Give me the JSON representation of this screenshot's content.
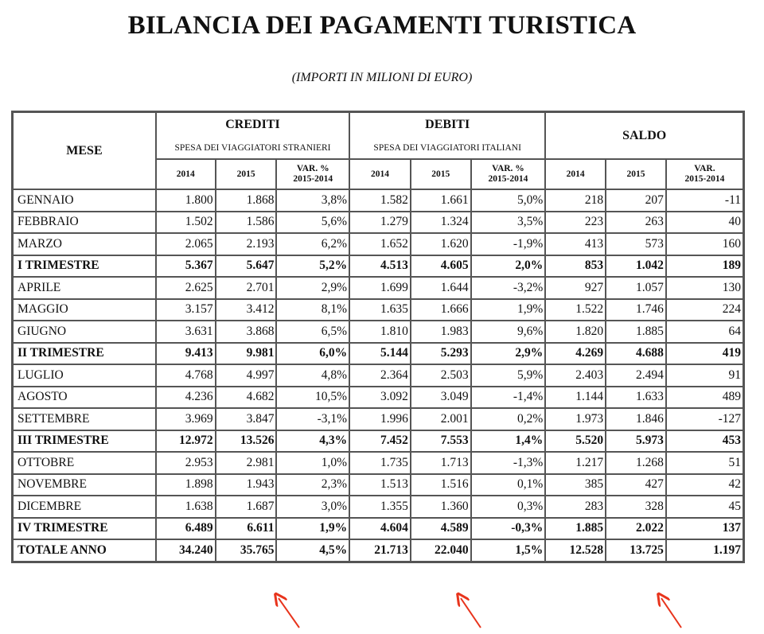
{
  "title": "BILANCIA DEI PAGAMENTI TURISTICA",
  "subtitle": "(IMPORTI IN MILIONI DI EURO)",
  "table": {
    "mese_header": "MESE",
    "groups": [
      {
        "name": "CREDITI",
        "sub": "SPESA DEI VIAGGIATORI STRANIERI"
      },
      {
        "name": "DEBITI",
        "sub": "SPESA DEI VIAGGIATORI ITALIANI"
      },
      {
        "name": "SALDO",
        "sub": ""
      }
    ],
    "subheaders": [
      [
        "2014",
        "2015",
        "VAR. %\n2015-2014"
      ],
      [
        "2014",
        "2015",
        "VAR. %\n2015-2014"
      ],
      [
        "2014",
        "2015",
        "VAR.\n2015-2014"
      ]
    ],
    "rows": [
      {
        "label": "GENNAIO",
        "bold": false,
        "values": [
          "1.800",
          "1.868",
          "3,8%",
          "1.582",
          "1.661",
          "5,0%",
          "218",
          "207",
          "-11"
        ]
      },
      {
        "label": "FEBBRAIO",
        "bold": false,
        "values": [
          "1.502",
          "1.586",
          "5,6%",
          "1.279",
          "1.324",
          "3,5%",
          "223",
          "263",
          "40"
        ]
      },
      {
        "label": "MARZO",
        "bold": false,
        "values": [
          "2.065",
          "2.193",
          "6,2%",
          "1.652",
          "1.620",
          "-1,9%",
          "413",
          "573",
          "160"
        ]
      },
      {
        "label": "I TRIMESTRE",
        "bold": true,
        "values": [
          "5.367",
          "5.647",
          "5,2%",
          "4.513",
          "4.605",
          "2,0%",
          "853",
          "1.042",
          "189"
        ]
      },
      {
        "label": "APRILE",
        "bold": false,
        "values": [
          "2.625",
          "2.701",
          "2,9%",
          "1.699",
          "1.644",
          "-3,2%",
          "927",
          "1.057",
          "130"
        ]
      },
      {
        "label": "MAGGIO",
        "bold": false,
        "values": [
          "3.157",
          "3.412",
          "8,1%",
          "1.635",
          "1.666",
          "1,9%",
          "1.522",
          "1.746",
          "224"
        ]
      },
      {
        "label": "GIUGNO",
        "bold": false,
        "values": [
          "3.631",
          "3.868",
          "6,5%",
          "1.810",
          "1.983",
          "9,6%",
          "1.820",
          "1.885",
          "64"
        ]
      },
      {
        "label": "II TRIMESTRE",
        "bold": true,
        "values": [
          "9.413",
          "9.981",
          "6,0%",
          "5.144",
          "5.293",
          "2,9%",
          "4.269",
          "4.688",
          "419"
        ]
      },
      {
        "label": "LUGLIO",
        "bold": false,
        "values": [
          "4.768",
          "4.997",
          "4,8%",
          "2.364",
          "2.503",
          "5,9%",
          "2.403",
          "2.494",
          "91"
        ]
      },
      {
        "label": "AGOSTO",
        "bold": false,
        "values": [
          "4.236",
          "4.682",
          "10,5%",
          "3.092",
          "3.049",
          "-1,4%",
          "1.144",
          "1.633",
          "489"
        ]
      },
      {
        "label": "SETTEMBRE",
        "bold": false,
        "values": [
          "3.969",
          "3.847",
          "-3,1%",
          "1.996",
          "2.001",
          "0,2%",
          "1.973",
          "1.846",
          "-127"
        ]
      },
      {
        "label": "III TRIMESTRE",
        "bold": true,
        "values": [
          "12.972",
          "13.526",
          "4,3%",
          "7.452",
          "7.553",
          "1,4%",
          "5.520",
          "5.973",
          "453"
        ]
      },
      {
        "label": "OTTOBRE",
        "bold": false,
        "values": [
          "2.953",
          "2.981",
          "1,0%",
          "1.735",
          "1.713",
          "-1,3%",
          "1.217",
          "1.268",
          "51"
        ]
      },
      {
        "label": "NOVEMBRE",
        "bold": false,
        "values": [
          "1.898",
          "1.943",
          "2,3%",
          "1.513",
          "1.516",
          "0,1%",
          "385",
          "427",
          "42"
        ]
      },
      {
        "label": "DICEMBRE",
        "bold": false,
        "values": [
          "1.638",
          "1.687",
          "3,0%",
          "1.355",
          "1.360",
          "0,3%",
          "283",
          "328",
          "45"
        ]
      },
      {
        "label": "IV TRIMESTRE",
        "bold": true,
        "values": [
          "6.489",
          "6.611",
          "1,9%",
          "4.604",
          "4.589",
          "-0,3%",
          "1.885",
          "2.022",
          "137"
        ]
      },
      {
        "label": "TOTALE ANNO",
        "bold": true,
        "values": [
          "34.240",
          "35.765",
          "4,5%",
          "21.713",
          "22.040",
          "1,5%",
          "12.528",
          "13.725",
          "1.197"
        ]
      }
    ]
  },
  "annotation_color": "#e8341c"
}
